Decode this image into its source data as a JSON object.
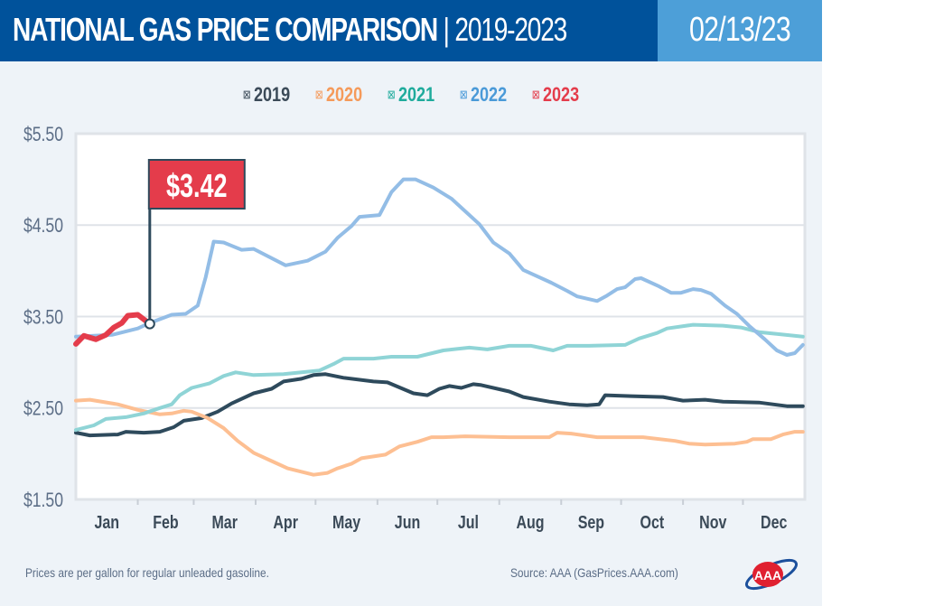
{
  "header": {
    "title": "NATIONAL GAS PRICE COMPARISON",
    "title_years": "| 2019-2023",
    "date": "02/13/23"
  },
  "footer": {
    "note": "Prices are per gallon for regular unleaded gasoline.",
    "source": "Source: AAA (GasPrices.AAA.com)",
    "logo_text": "AAA"
  },
  "chart_data": {
    "type": "line",
    "title": "NATIONAL GAS PRICE COMPARISON | 2019-2023",
    "xlabel": "",
    "ylabel": "",
    "ylim": [
      1.5,
      5.5
    ],
    "yticks": [
      "$5.50",
      "$4.50",
      "$3.50",
      "$2.50",
      "$1.50"
    ],
    "ytick_values": [
      5.5,
      4.5,
      3.5,
      2.5,
      1.5
    ],
    "xticks": [
      "Jan",
      "Feb",
      "Mar",
      "Apr",
      "May",
      "Jun",
      "Jul",
      "Aug",
      "Sep",
      "Oct",
      "Nov",
      "Dec"
    ],
    "grid": "horizontal",
    "legend": "top-center",
    "annotation": {
      "label": "$3.42",
      "series": "2023",
      "date": "02-07",
      "value": 3.42,
      "color": "#e43c4b"
    },
    "series": [
      {
        "name": "2019",
        "color": "#2e4a5c",
        "legend_color": "#3b4a58",
        "points": [
          [
            "01-01",
            2.23
          ],
          [
            "01-08",
            2.2
          ],
          [
            "01-22",
            2.21
          ],
          [
            "01-26",
            2.24
          ],
          [
            "02-04",
            2.23
          ],
          [
            "02-12",
            2.24
          ],
          [
            "02-19",
            2.29
          ],
          [
            "02-24",
            2.36
          ],
          [
            "03-05",
            2.39
          ],
          [
            "03-13",
            2.46
          ],
          [
            "03-20",
            2.55
          ],
          [
            "03-31",
            2.66
          ],
          [
            "04-09",
            2.71
          ],
          [
            "04-15",
            2.79
          ],
          [
            "04-24",
            2.82
          ],
          [
            "04-30",
            2.86
          ],
          [
            "05-06",
            2.87
          ],
          [
            "05-15",
            2.83
          ],
          [
            "05-30",
            2.79
          ],
          [
            "06-06",
            2.78
          ],
          [
            "06-19",
            2.66
          ],
          [
            "06-26",
            2.64
          ],
          [
            "07-02",
            2.71
          ],
          [
            "07-07",
            2.74
          ],
          [
            "07-13",
            2.72
          ],
          [
            "07-19",
            2.76
          ],
          [
            "07-23",
            2.75
          ],
          [
            "08-06",
            2.68
          ],
          [
            "08-13",
            2.62
          ],
          [
            "08-26",
            2.57
          ],
          [
            "09-05",
            2.54
          ],
          [
            "09-14",
            2.53
          ],
          [
            "09-20",
            2.54
          ],
          [
            "09-23",
            2.64
          ],
          [
            "10-06",
            2.63
          ],
          [
            "10-22",
            2.62
          ],
          [
            "11-01",
            2.58
          ],
          [
            "11-12",
            2.59
          ],
          [
            "11-21",
            2.57
          ],
          [
            "12-09",
            2.56
          ],
          [
            "12-23",
            2.52
          ],
          [
            "12-31",
            2.52
          ]
        ]
      },
      {
        "name": "2020",
        "color": "#fdbf92",
        "legend_color": "#f59a5a",
        "points": [
          [
            "01-01",
            2.58
          ],
          [
            "01-08",
            2.59
          ],
          [
            "01-22",
            2.54
          ],
          [
            "02-01",
            2.48
          ],
          [
            "02-12",
            2.43
          ],
          [
            "02-18",
            2.44
          ],
          [
            "02-24",
            2.47
          ],
          [
            "02-28",
            2.46
          ],
          [
            "03-08",
            2.39
          ],
          [
            "03-16",
            2.28
          ],
          [
            "03-23",
            2.14
          ],
          [
            "03-31",
            2.01
          ],
          [
            "04-09",
            1.92
          ],
          [
            "04-17",
            1.84
          ],
          [
            "04-30",
            1.77
          ],
          [
            "05-07",
            1.79
          ],
          [
            "05-12",
            1.84
          ],
          [
            "05-19",
            1.89
          ],
          [
            "05-24",
            1.95
          ],
          [
            "06-05",
            1.99
          ],
          [
            "06-12",
            2.08
          ],
          [
            "06-21",
            2.13
          ],
          [
            "06-28",
            2.18
          ],
          [
            "07-04",
            2.18
          ],
          [
            "07-15",
            2.19
          ],
          [
            "08-06",
            2.18
          ],
          [
            "08-26",
            2.18
          ],
          [
            "08-30",
            2.23
          ],
          [
            "09-06",
            2.22
          ],
          [
            "09-19",
            2.18
          ],
          [
            "10-12",
            2.18
          ],
          [
            "10-28",
            2.14
          ],
          [
            "11-04",
            2.11
          ],
          [
            "11-12",
            2.1
          ],
          [
            "11-27",
            2.11
          ],
          [
            "12-03",
            2.13
          ],
          [
            "12-06",
            2.16
          ],
          [
            "12-15",
            2.16
          ],
          [
            "12-21",
            2.21
          ],
          [
            "12-27",
            2.24
          ],
          [
            "12-31",
            2.24
          ]
        ]
      },
      {
        "name": "2021",
        "color": "#8fd4d6",
        "legend_color": "#1fab9c",
        "points": [
          [
            "01-01",
            2.26
          ],
          [
            "01-10",
            2.31
          ],
          [
            "01-16",
            2.38
          ],
          [
            "01-26",
            2.4
          ],
          [
            "02-04",
            2.44
          ],
          [
            "02-12",
            2.5
          ],
          [
            "02-18",
            2.54
          ],
          [
            "02-22",
            2.64
          ],
          [
            "02-28",
            2.72
          ],
          [
            "03-09",
            2.77
          ],
          [
            "03-16",
            2.85
          ],
          [
            "03-22",
            2.89
          ],
          [
            "03-31",
            2.86
          ],
          [
            "04-15",
            2.87
          ],
          [
            "05-03",
            2.91
          ],
          [
            "05-10",
            2.98
          ],
          [
            "05-15",
            3.04
          ],
          [
            "05-30",
            3.04
          ],
          [
            "06-08",
            3.06
          ],
          [
            "06-21",
            3.06
          ],
          [
            "07-04",
            3.13
          ],
          [
            "07-17",
            3.16
          ],
          [
            "07-26",
            3.14
          ],
          [
            "08-06",
            3.18
          ],
          [
            "08-17",
            3.18
          ],
          [
            "08-28",
            3.13
          ],
          [
            "09-04",
            3.18
          ],
          [
            "09-15",
            3.18
          ],
          [
            "10-03",
            3.19
          ],
          [
            "10-10",
            3.26
          ],
          [
            "10-19",
            3.32
          ],
          [
            "10-24",
            3.37
          ],
          [
            "11-06",
            3.41
          ],
          [
            "11-21",
            3.4
          ],
          [
            "11-30",
            3.38
          ],
          [
            "12-09",
            3.33
          ],
          [
            "12-18",
            3.31
          ],
          [
            "12-31",
            3.28
          ]
        ]
      },
      {
        "name": "2022",
        "color": "#93bde6",
        "legend_color": "#4a9ad8",
        "points": [
          [
            "01-01",
            3.28
          ],
          [
            "01-19",
            3.3
          ],
          [
            "02-01",
            3.37
          ],
          [
            "02-07",
            3.43
          ],
          [
            "02-18",
            3.52
          ],
          [
            "02-25",
            3.53
          ],
          [
            "03-03",
            3.62
          ],
          [
            "03-07",
            3.93
          ],
          [
            "03-11",
            4.32
          ],
          [
            "03-16",
            4.31
          ],
          [
            "03-25",
            4.23
          ],
          [
            "03-31",
            4.24
          ],
          [
            "04-16",
            4.06
          ],
          [
            "04-27",
            4.11
          ],
          [
            "05-06",
            4.21
          ],
          [
            "05-12",
            4.36
          ],
          [
            "05-19",
            4.49
          ],
          [
            "05-23",
            4.59
          ],
          [
            "06-02",
            4.61
          ],
          [
            "06-08",
            4.86
          ],
          [
            "06-14",
            5.0
          ],
          [
            "06-20",
            5.0
          ],
          [
            "06-29",
            4.91
          ],
          [
            "07-08",
            4.79
          ],
          [
            "07-14",
            4.67
          ],
          [
            "07-22",
            4.51
          ],
          [
            "07-29",
            4.31
          ],
          [
            "08-06",
            4.19
          ],
          [
            "08-13",
            4.01
          ],
          [
            "08-19",
            3.95
          ],
          [
            "08-27",
            3.87
          ],
          [
            "09-04",
            3.78
          ],
          [
            "09-09",
            3.72
          ],
          [
            "09-19",
            3.67
          ],
          [
            "09-24",
            3.73
          ],
          [
            "09-29",
            3.8
          ],
          [
            "10-03",
            3.82
          ],
          [
            "10-08",
            3.91
          ],
          [
            "10-11",
            3.92
          ],
          [
            "10-20",
            3.83
          ],
          [
            "10-26",
            3.76
          ],
          [
            "10-31",
            3.76
          ],
          [
            "11-06",
            3.8
          ],
          [
            "11-10",
            3.79
          ],
          [
            "11-15",
            3.75
          ],
          [
            "11-22",
            3.62
          ],
          [
            "11-28",
            3.53
          ],
          [
            "12-04",
            3.4
          ],
          [
            "12-12",
            3.25
          ],
          [
            "12-18",
            3.13
          ],
          [
            "12-23",
            3.08
          ],
          [
            "12-27",
            3.1
          ],
          [
            "12-31",
            3.19
          ]
        ]
      },
      {
        "name": "2023",
        "color": "#e43c4b",
        "legend_color": "#e43c4b",
        "points": [
          [
            "01-01",
            3.2
          ],
          [
            "01-05",
            3.29
          ],
          [
            "01-11",
            3.25
          ],
          [
            "01-16",
            3.3
          ],
          [
            "01-20",
            3.38
          ],
          [
            "01-24",
            3.43
          ],
          [
            "01-27",
            3.51
          ],
          [
            "02-01",
            3.52
          ],
          [
            "02-07",
            3.42
          ]
        ]
      }
    ]
  }
}
